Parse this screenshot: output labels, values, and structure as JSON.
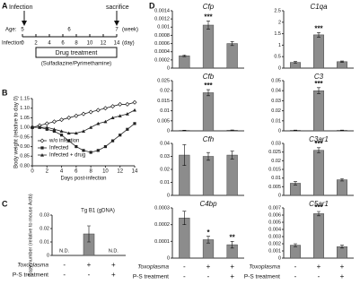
{
  "panel_labels": [
    "A",
    "B",
    "C",
    "D"
  ],
  "timeline": {
    "events": [
      "Infection",
      "sacrifice"
    ],
    "age_label": "Age:",
    "ages": [
      "5",
      "6",
      "7"
    ],
    "age_unit": "(week)",
    "infection_label": "Infection:",
    "days": [
      "0",
      "2",
      "4",
      "6",
      "8",
      "10",
      "12",
      "14"
    ],
    "day_unit": "(day)",
    "treatment": "Drug treatment",
    "drug": "(Sulfadiazine/Pyrimethamine)"
  },
  "conditions": [
    {
      "name": "Toxoplasma",
      "marks": [
        "-",
        "+",
        "+"
      ]
    },
    {
      "name": "P-S treatment",
      "marks": [
        "-",
        "-",
        "+"
      ]
    }
  ],
  "chart_data": [
    {
      "type": "line",
      "y_label": "Body weight (relative to day 0)",
      "x_label": "Days post-infection",
      "x": [
        0,
        1,
        2,
        3,
        4,
        5,
        6,
        7,
        8,
        9,
        10,
        11,
        12,
        13,
        14
      ],
      "xlim": [
        0,
        14
      ],
      "xticks": [
        0,
        2,
        4,
        6,
        8,
        10,
        12,
        14
      ],
      "ylim": [
        0.8,
        1.15
      ],
      "yticks": [
        {
          "value": 0.8,
          "label": "0.80"
        },
        {
          "value": 0.85,
          "label": "0.85"
        },
        {
          "value": 0.9,
          "label": "0.90"
        },
        {
          "value": 0.95,
          "label": "0.95"
        },
        {
          "value": 1,
          "label": "1.00"
        },
        {
          "value": 1.05,
          "label": "1.05"
        },
        {
          "value": 1.1,
          "label": "1.10"
        },
        {
          "value": 1.15,
          "label": "1.15"
        }
      ],
      "series": [
        {
          "name": "w/o infection",
          "color": "#222222",
          "marker": "diamond",
          "values": [
            1,
            1.01,
            1.02,
            1.03,
            1.04,
            1.05,
            1.06,
            1.07,
            1.08,
            1.09,
            1.1,
            1.11,
            1.12,
            1.12,
            1.13
          ]
        },
        {
          "name": "Infected",
          "color": "#222222",
          "marker": "square",
          "values": [
            1,
            1,
            0.99,
            0.98,
            0.96,
            0.93,
            0.9,
            0.88,
            0.87,
            0.88,
            0.9,
            0.93,
            0.96,
            0.99,
            1.02
          ]
        },
        {
          "name": "Infected + drug",
          "color": "#222222",
          "marker": "triangle",
          "values": [
            1,
            1,
            1,
            0.99,
            0.98,
            0.97,
            0.97,
            0.98,
            1,
            1.02,
            1.03,
            1.05,
            1.06,
            1.07,
            1.09
          ]
        }
      ]
    },
    {
      "type": "bar",
      "title": "Tg B1 (gDNA)",
      "y_label": "Copy number (relative to mouse Actb)",
      "color": "#8c8c8c",
      "values": [
        null,
        0.016,
        null
      ],
      "value_labels": [
        "N.D.",
        null,
        "N.D."
      ],
      "errors": [
        null,
        0.006,
        null
      ],
      "ylim": [
        0,
        0.03
      ],
      "yticks": [
        0,
        0.01,
        0.02,
        0.03
      ]
    },
    {
      "type": "bar",
      "title": "Cfp",
      "color": "#8c8c8c",
      "values": [
        0.0003,
        0.00105,
        0.0006
      ],
      "errors": [
        2e-05,
        0.0001,
        5e-05
      ],
      "ylim": [
        0,
        0.0014
      ],
      "yticks": [
        0,
        0.0002,
        0.0004,
        0.0006,
        0.0008,
        0.001,
        0.0012,
        0.0014
      ],
      "significance": [
        {
          "index": 1,
          "label": "***"
        }
      ]
    },
    {
      "type": "bar",
      "title": "C1qa",
      "color": "#8c8c8c",
      "values": [
        0.25,
        1.45,
        0.28
      ],
      "errors": [
        0.04,
        0.1,
        0.03
      ],
      "ylim": [
        0,
        2.5
      ],
      "yticks": [
        0,
        0.5,
        1,
        1.5,
        2,
        2.5
      ],
      "significance": [
        {
          "index": 1,
          "label": "***"
        }
      ]
    },
    {
      "type": "bar",
      "title": "Cfb",
      "color": "#8c8c8c",
      "values": [
        0.0002,
        0.019,
        0.0003
      ],
      "errors": [
        0.0001,
        0.0015,
        0.0001
      ],
      "ylim": [
        0,
        0.025
      ],
      "yticks": [
        0,
        0.005,
        0.01,
        0.015,
        0.02,
        0.025
      ],
      "significance": [
        {
          "index": 1,
          "label": "***"
        }
      ]
    },
    {
      "type": "bar",
      "title": "C3",
      "color": "#8c8c8c",
      "values": [
        0.0005,
        0.04,
        0.0005
      ],
      "errors": [
        0.0002,
        0.003,
        0.0002
      ],
      "ylim": [
        0,
        0.05
      ],
      "yticks": [
        0,
        0.01,
        0.02,
        0.03,
        0.04,
        0.05
      ],
      "significance": [
        {
          "index": 1,
          "label": "***"
        }
      ]
    },
    {
      "type": "bar",
      "title": "Cfh",
      "color": "#8c8c8c",
      "values": [
        0.031,
        0.03,
        0.031
      ],
      "errors": [
        0.008,
        0.003,
        0.003
      ],
      "ylim": [
        0,
        0.04
      ],
      "yticks": [
        0,
        0.01,
        0.02,
        0.03,
        0.04
      ]
    },
    {
      "type": "bar",
      "title": "C3ar1",
      "color": "#8c8c8c",
      "values": [
        0.007,
        0.026,
        0.009
      ],
      "errors": [
        0.001,
        0.0015,
        0.0007
      ],
      "ylim": [
        0,
        0.03
      ],
      "yticks": [
        0,
        0.005,
        0.01,
        0.015,
        0.02,
        0.025,
        0.03
      ],
      "significance": [
        {
          "index": 1,
          "label": "***"
        }
      ]
    },
    {
      "type": "bar",
      "title": "C4bp",
      "color": "#8c8c8c",
      "values": [
        0.00024,
        0.00011,
        8e-05
      ],
      "errors": [
        4e-05,
        2e-05,
        2e-05
      ],
      "ylim": [
        0,
        0.0003
      ],
      "yticks": [
        0,
        0.0001,
        0.0002,
        0.0003
      ],
      "significance": [
        {
          "index": 1,
          "label": "*"
        },
        {
          "index": 2,
          "label": "**"
        }
      ]
    },
    {
      "type": "bar",
      "title": "C5ar1",
      "color": "#8c8c8c",
      "values": [
        0.0018,
        0.0062,
        0.0016
      ],
      "errors": [
        0.0002,
        0.0003,
        0.0002
      ],
      "ylim": [
        0,
        0.007
      ],
      "yticks": [
        0,
        0.001,
        0.002,
        0.003,
        0.004,
        0.005,
        0.006,
        0.007
      ],
      "significance": [
        {
          "index": 1,
          "label": "***"
        }
      ]
    }
  ]
}
